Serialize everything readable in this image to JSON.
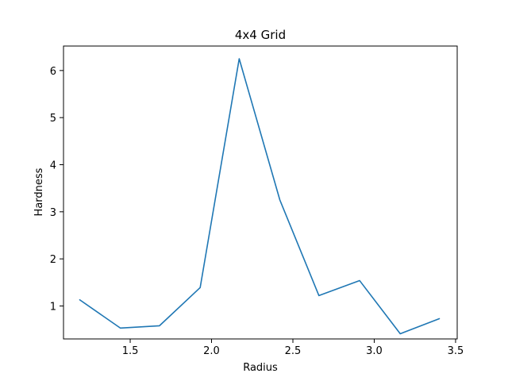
{
  "chart_data": {
    "type": "line",
    "title": "4x4 Grid",
    "xlabel": "Radius",
    "ylabel": "Hardness",
    "xlim": [
      1.09,
      3.51
    ],
    "ylim": [
      0.3,
      6.52
    ],
    "xticks": [
      1.5,
      2.0,
      2.5,
      3.0,
      3.5
    ],
    "xtick_labels": [
      "1.5",
      "2.0",
      "2.5",
      "3.0",
      "3.5"
    ],
    "yticks": [
      1,
      2,
      3,
      4,
      5,
      6
    ],
    "ytick_labels": [
      "1",
      "2",
      "3",
      "4",
      "5",
      "6"
    ],
    "grid": false,
    "series": [
      {
        "color": "#1f77b4",
        "x": [
          1.19,
          1.44,
          1.68,
          1.93,
          2.17,
          2.42,
          2.66,
          2.91,
          3.16,
          3.4
        ],
        "y": [
          1.13,
          0.53,
          0.58,
          1.39,
          6.25,
          3.25,
          1.22,
          1.54,
          0.41,
          0.73
        ]
      }
    ]
  }
}
